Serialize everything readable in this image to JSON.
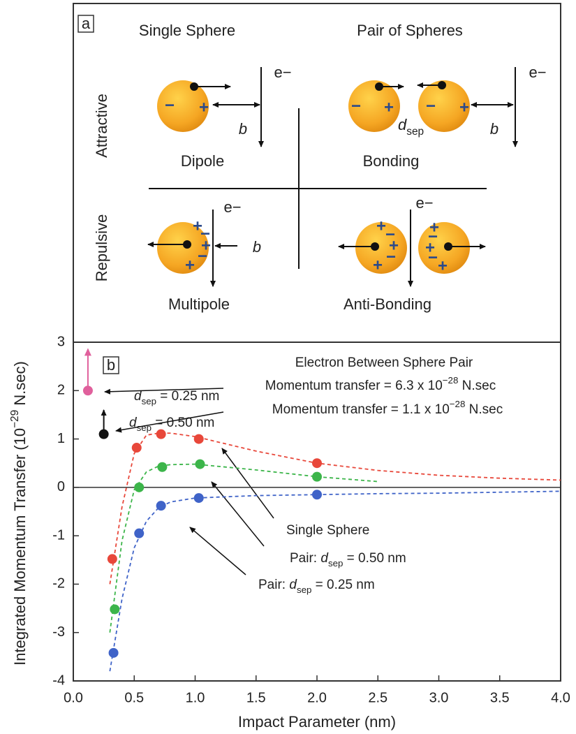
{
  "panel_a": {
    "panel_label": "a",
    "col_single": "Single Sphere",
    "col_pair": "Pair of Spheres",
    "row_attractive": "Attractive",
    "row_repulsive": "Repulsive",
    "dipole": "Dipole",
    "bonding": "Bonding",
    "multipole": "Multipole",
    "anti_bonding": "Anti-Bonding",
    "electron": "e−",
    "impact": "b",
    "minus": "−",
    "plus": "+",
    "d_sep": [
      {
        "text": "d",
        "style": "i"
      },
      {
        "text": "sep",
        "style": "sub"
      }
    ]
  },
  "chart_data": {
    "type": "scatter",
    "panel_label": "b",
    "x_label": [
      {
        "text": "Impact Parameter (nm)"
      }
    ],
    "y_label": [
      {
        "text": "Integrated Momentum Transfer (10"
      },
      {
        "text": "−29",
        "style": "sup"
      },
      {
        "text": " N.sec)"
      }
    ],
    "xlim": [
      0,
      4
    ],
    "ylim": [
      -4,
      3
    ],
    "xticks": [
      {
        "value": 0,
        "label": "0.0"
      },
      {
        "value": 0.5,
        "label": "0.5"
      },
      {
        "value": 1,
        "label": "1.0"
      },
      {
        "value": 1.5,
        "label": "1.5"
      },
      {
        "value": 2,
        "label": "2.0"
      },
      {
        "value": 2.5,
        "label": "2.5"
      },
      {
        "value": 3,
        "label": "3.0"
      },
      {
        "value": 3.5,
        "label": "3.5"
      },
      {
        "value": 4,
        "label": "4.0"
      }
    ],
    "yticks": [
      -4,
      -3,
      -2,
      -1,
      0,
      1,
      2,
      3
    ],
    "zero_line": true,
    "series": [
      {
        "name": [
          {
            "text": "Single Sphere"
          }
        ],
        "color": "#e8473a",
        "x": [
          0.32,
          0.52,
          0.72,
          1.03,
          2.0
        ],
        "values": [
          -1.48,
          0.82,
          1.1,
          1.0,
          0.5
        ],
        "fit_x": [
          0.3,
          0.4,
          0.5,
          0.6,
          0.7,
          0.8,
          1.0,
          1.5,
          2.0,
          2.5,
          3.0,
          3.5,
          4.0
        ],
        "fit_values": [
          -2.0,
          -0.4,
          0.7,
          1.08,
          1.12,
          1.12,
          1.05,
          0.75,
          0.5,
          0.35,
          0.25,
          0.19,
          0.15
        ]
      },
      {
        "name": [
          {
            "text": "Pair: "
          },
          {
            "text": "d",
            "style": "i"
          },
          {
            "text": "sep",
            "style": "sub"
          },
          {
            "text": " = 0.50 nm"
          }
        ],
        "color": "#3cb54a",
        "x": [
          0.34,
          0.54,
          0.73,
          1.04,
          2.0
        ],
        "values": [
          -2.52,
          0.0,
          0.42,
          0.48,
          0.22
        ],
        "fit_x": [
          0.3,
          0.4,
          0.5,
          0.6,
          0.7,
          0.8,
          1.0,
          1.5,
          2.0,
          2.5
        ],
        "fit_values": [
          -3.0,
          -1.1,
          -0.05,
          0.32,
          0.44,
          0.47,
          0.48,
          0.36,
          0.22,
          0.12
        ]
      },
      {
        "name": [
          {
            "text": "Pair: "
          },
          {
            "text": "d",
            "style": "i"
          },
          {
            "text": "sep",
            "style": "sub"
          },
          {
            "text": " = 0.25 nm"
          }
        ],
        "color": "#3f63c8",
        "x": [
          0.33,
          0.54,
          0.72,
          1.03,
          2.0
        ],
        "values": [
          -3.42,
          -0.95,
          -0.38,
          -0.22,
          -0.15
        ],
        "fit_x": [
          0.3,
          0.4,
          0.5,
          0.6,
          0.7,
          0.8,
          1.0,
          1.5,
          2.0,
          2.5,
          3.0,
          3.5,
          4.0
        ],
        "fit_values": [
          -3.8,
          -2.3,
          -1.25,
          -0.7,
          -0.42,
          -0.3,
          -0.22,
          -0.17,
          -0.15,
          -0.13,
          -0.12,
          -0.1,
          -0.08
        ]
      }
    ],
    "between": {
      "title": "Electron Between Sphere Pair",
      "points": [
        {
          "x": 0.12,
          "y": 2.0,
          "arrow_top": 2.85,
          "color": "#e0609c",
          "label": [
            {
              "text": "d",
              "style": "i"
            },
            {
              "text": "sep",
              "style": "sub"
            },
            {
              "text": " = 0.25 nm"
            }
          ],
          "transfer": [
            {
              "text": "Momentum transfer = 6.3 x 10"
            },
            {
              "text": "−28",
              "style": "sup"
            },
            {
              "text": " N.sec"
            }
          ]
        },
        {
          "x": 0.25,
          "y": 1.1,
          "arrow_top": 1.6,
          "color": "#111111",
          "label": [
            {
              "text": "d",
              "style": "i"
            },
            {
              "text": "sep",
              "style": "sub"
            },
            {
              "text": " = 0.50 nm"
            }
          ],
          "transfer": [
            {
              "text": "Momentum transfer = 1.1 x 10"
            },
            {
              "text": "−28",
              "style": "sup"
            },
            {
              "text": " N.sec"
            }
          ]
        }
      ]
    }
  }
}
